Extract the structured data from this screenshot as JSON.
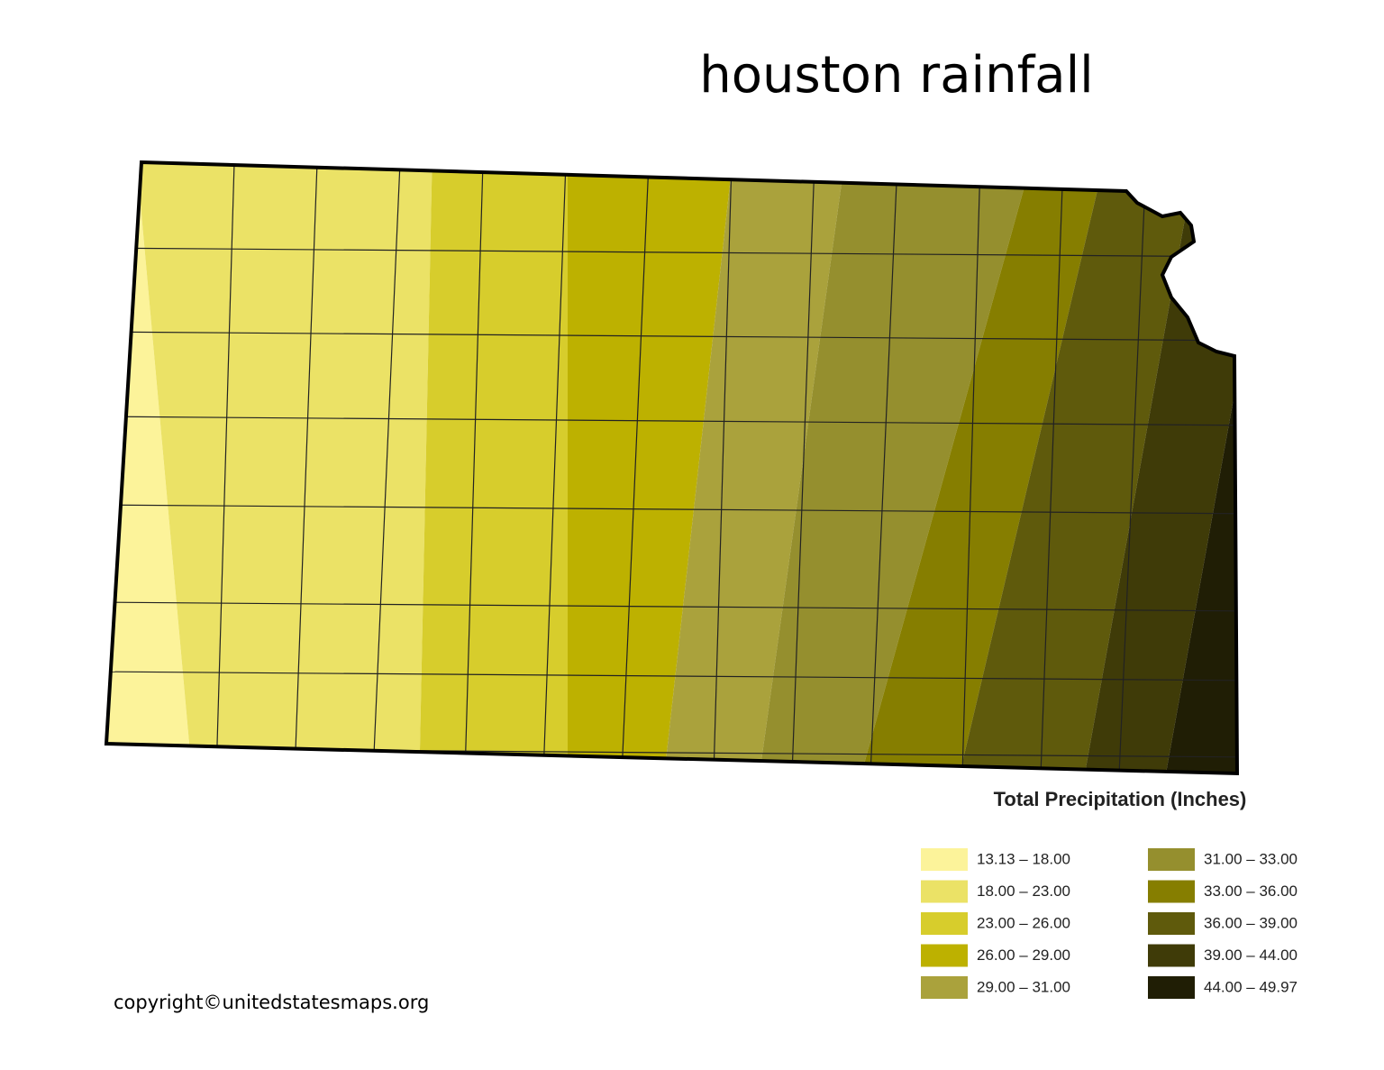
{
  "title": "houston rainfall",
  "legend": {
    "title": "Total Precipitation (Inches)",
    "items": [
      {
        "label": "13.13 – 18.00",
        "color": "#fcf39a"
      },
      {
        "label": "18.00 – 23.00",
        "color": "#ebe266"
      },
      {
        "label": "23.00 – 26.00",
        "color": "#d7cd2c"
      },
      {
        "label": "26.00 – 29.00",
        "color": "#bdb100"
      },
      {
        "label": "29.00 – 31.00",
        "color": "#aaa23c"
      },
      {
        "label": "31.00 – 33.00",
        "color": "#958f2e"
      },
      {
        "label": "33.00 – 36.00",
        "color": "#867e00"
      },
      {
        "label": "36.00 – 39.00",
        "color": "#5f5a0c"
      },
      {
        "label": "39.00 – 44.00",
        "color": "#3f3b08"
      },
      {
        "label": "44.00 – 49.97",
        "color": "#201e05"
      }
    ]
  },
  "copyright": "copyright©unitedstatesmaps.org"
}
